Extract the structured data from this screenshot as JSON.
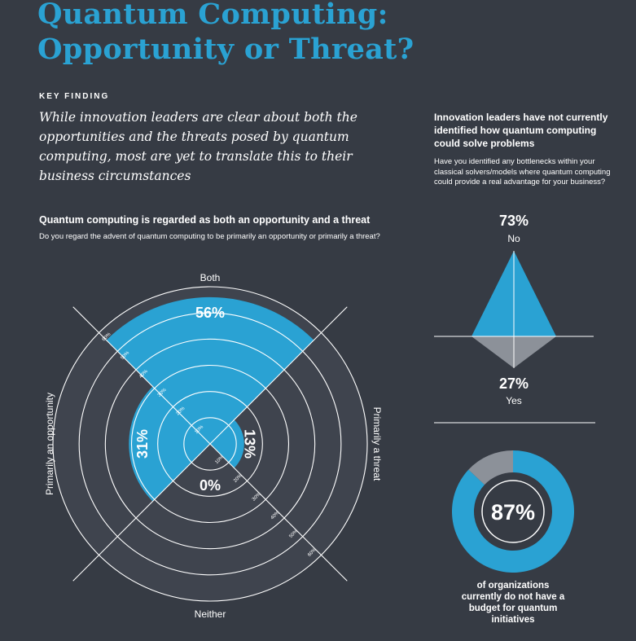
{
  "header": {
    "title_line1": "Quantum Computing:",
    "title_line2": "Opportunity or Threat?",
    "kicker": "KEY FINDING",
    "finding": "While innovation leaders are clear about both the opportunities and the threats posed by quantum computing, most are yet to translate this to their business circumstances"
  },
  "left_panel": {
    "title": "Quantum computing is regarded as both an opportunity and a threat",
    "question": "Do you regard the advent of quantum computing to be primarily an opportunity or primarily a threat?"
  },
  "right_panel": {
    "title": "Innovation leaders have not currently identified how quantum computing could solve problems",
    "question": "Have you identified any bottlenecks within your classical solvers/models where quantum computing could provide a real advantage for your business?",
    "budget_caption": "of organizations currently do not have a budget for quantum initiatives"
  },
  "chart_data": [
    {
      "type": "polar-area",
      "title": "Quantum computing is regarded as both an opportunity and a threat",
      "radial_max": 60,
      "radial_ticks": [
        "10%",
        "20%",
        "30%",
        "40%",
        "50%",
        "60%"
      ],
      "tick_values": [
        10,
        20,
        30,
        40,
        50,
        60
      ],
      "categories": [
        {
          "name": "Both",
          "value": 56,
          "label": "56%",
          "direction": "top"
        },
        {
          "name": "Primarily a threat",
          "value": 13,
          "label": "13%",
          "direction": "right"
        },
        {
          "name": "Neither",
          "value": 0,
          "label": "0%",
          "direction": "bottom"
        },
        {
          "name": "Primarily an opportunity",
          "value": 31,
          "label": "31%",
          "direction": "left"
        }
      ],
      "colors": {
        "fill": "#2aa2d3",
        "ring": "#3f444e",
        "ring_stroke": "#ffffff"
      }
    },
    {
      "type": "kite",
      "values": [
        {
          "name": "No",
          "value": 73,
          "label": "73%",
          "color": "#2aa2d3"
        },
        {
          "name": "Yes",
          "value": 27,
          "label": "27%",
          "color": "#8c9199"
        }
      ]
    },
    {
      "type": "donut",
      "values": [
        {
          "name": "No budget",
          "value": 87,
          "color": "#2aa2d3"
        },
        {
          "name": "Budget",
          "value": 13,
          "color": "#8c9199"
        }
      ],
      "center_label": "87%"
    }
  ]
}
